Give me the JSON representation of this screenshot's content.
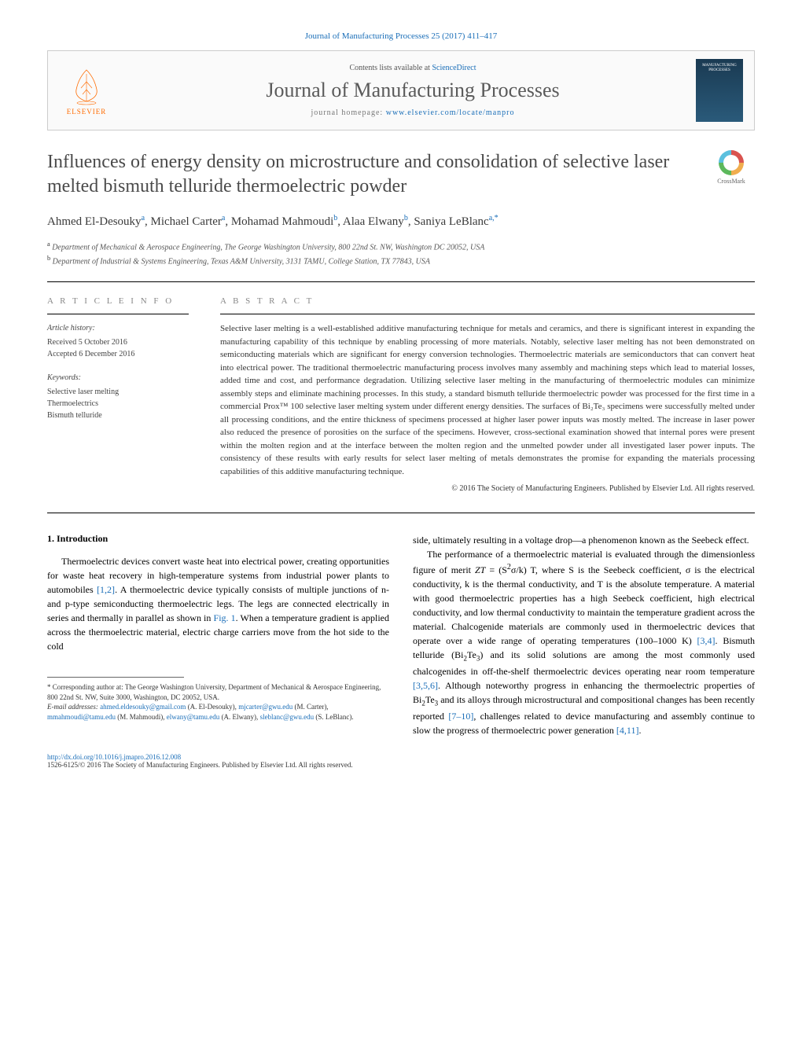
{
  "journal_ref": "Journal of Manufacturing Processes 25 (2017) 411–417",
  "header": {
    "contents_prefix": "Contents lists available at ",
    "contents_link": "ScienceDirect",
    "journal_name": "Journal of Manufacturing Processes",
    "homepage_prefix": "journal homepage: ",
    "homepage_url": "www.elsevier.com/locate/manpro",
    "elsevier_label": "ELSEVIER",
    "cover_line1": "MANUFACTURING",
    "cover_line2": "PROCESSES"
  },
  "crossmark_label": "CrossMark",
  "title": "Influences of energy density on microstructure and consolidation of selective laser melted bismuth telluride thermoelectric powder",
  "authors_html": "Ahmed El-Desouky<sup>a</sup>, Michael Carter<sup>a</sup>, Mohamad Mahmoudi<sup>b</sup>, Alaa Elwany<sup>b</sup>, Saniya LeBlanc<sup>a,*</sup>",
  "affiliations": {
    "a": "Department of Mechanical & Aerospace Engineering, The George Washington University, 800 22nd St. NW, Washington DC 20052, USA",
    "b": "Department of Industrial & Systems Engineering, Texas A&M University, 3131 TAMU, College Station, TX 77843, USA"
  },
  "article_info": {
    "heading": "A R T I C L E   I N F O",
    "history_label": "Article history:",
    "received": "Received 5 October 2016",
    "accepted": "Accepted 6 December 2016",
    "keywords_label": "Keywords:",
    "keywords": [
      "Selective laser melting",
      "Thermoelectrics",
      "Bismuth telluride"
    ]
  },
  "abstract": {
    "heading": "A B S T R A C T",
    "text": "Selective laser melting is a well-established additive manufacturing technique for metals and ceramics, and there is significant interest in expanding the manufacturing capability of this technique by enabling processing of more materials. Notably, selective laser melting has not been demonstrated on semiconducting materials which are significant for energy conversion technologies. Thermoelectric materials are semiconductors that can convert heat into electrical power. The traditional thermoelectric manufacturing process involves many assembly and machining steps which lead to material losses, added time and cost, and performance degradation. Utilizing selective laser melting in the manufacturing of thermoelectric modules can minimize assembly steps and eliminate machining processes. In this study, a standard bismuth telluride thermoelectric powder was processed for the first time in a commercial Prox™ 100 selective laser melting system under different energy densities. The surfaces of Bi₂Te₃ specimens were successfully melted under all processing conditions, and the entire thickness of specimens processed at higher laser power inputs was mostly melted. The increase in laser power also reduced the presence of porosities on the surface of the specimens. However, cross-sectional examination showed that internal pores were present within the molten region and at the interface between the molten region and the unmelted powder under all investigated laser power inputs. The consistency of these results with early results for select laser melting of metals demonstrates the promise for expanding the materials processing capabilities of this additive manufacturing technique.",
    "copyright": "© 2016 The Society of Manufacturing Engineers. Published by Elsevier Ltd. All rights reserved."
  },
  "body": {
    "intro_heading": "1. Introduction",
    "left_p1": "Thermoelectric devices convert waste heat into electrical power, creating opportunities for waste heat recovery in high-temperature systems from industrial power plants to automobiles [1,2]. A thermoelectric device typically consists of multiple junctions of n- and p-type semiconducting thermoelectric legs. The legs are connected electrically in series and thermally in parallel as shown in Fig. 1. When a temperature gradient is applied across the thermoelectric material, electric charge carriers move from the hot side to the cold",
    "right_p1": "side, ultimately resulting in a voltage drop—a phenomenon known as the Seebeck effect.",
    "right_p2": "The performance of a thermoelectric material is evaluated through the dimensionless figure of merit ZT = (S²σ/k) T, where S is the Seebeck coefficient, σ is the electrical conductivity, k is the thermal conductivity, and T is the absolute temperature. A material with good thermoelectric properties has a high Seebeck coefficient, high electrical conductivity, and low thermal conductivity to maintain the temperature gradient across the material. Chalcogenide materials are commonly used in thermoelectric devices that operate over a wide range of operating temperatures (100–1000 K) [3,4]. Bismuth telluride (Bi₂Te₃) and its solid solutions are among the most commonly used chalcogenides in off-the-shelf thermoelectric devices operating near room temperature [3,5,6]. Although noteworthy progress in enhancing the thermoelectric properties of Bi₂Te₃ and its alloys through microstructural and compositional changes has been recently reported [7–10], challenges related to device manufacturing and assembly continue to slow the progress of thermoelectric power generation [4,11]."
  },
  "footnote": {
    "corr_label": "* Corresponding author at: The George Washington University, Department of Mechanical & Aerospace Engineering, 800 22nd St. NW, Suite 3000, Washington, DC 20052, USA.",
    "email_label": "E-mail addresses:",
    "emails": [
      {
        "addr": "ahmed.eldesouky@gmail.com",
        "who": "(A. El-Desouky)"
      },
      {
        "addr": "mjcarter@gwu.edu",
        "who": "(M. Carter)"
      },
      {
        "addr": "mmahmoudi@tamu.edu",
        "who": "(M. Mahmoudi)"
      },
      {
        "addr": "elwany@tamu.edu",
        "who": "(A. Elwany)"
      },
      {
        "addr": "sleblanc@gwu.edu",
        "who": "(S. LeBlanc)"
      }
    ]
  },
  "bottom": {
    "doi": "http://dx.doi.org/10.1016/j.jmapro.2016.12.008",
    "issn_line": "1526-6125/© 2016 The Society of Manufacturing Engineers. Published by Elsevier Ltd. All rights reserved."
  },
  "colors": {
    "link": "#1a6eb8",
    "title_gray": "#4a4a4a",
    "elsevier_orange": "#ff6b00"
  },
  "refs": {
    "r12": "[1,2]",
    "fig1": "Fig. 1",
    "r34": "[3,4]",
    "r356": "[3,5,6]",
    "r710": "[7–10]",
    "r411": "[4,11]"
  }
}
